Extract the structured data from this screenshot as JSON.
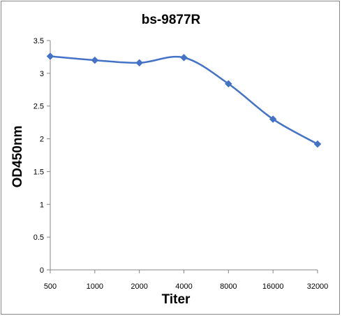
{
  "chart_data": {
    "type": "line",
    "title": "bs-9877R",
    "xlabel": "Titer",
    "ylabel": "OD450nm",
    "categories": [
      "500",
      "1000",
      "2000",
      "4000",
      "8000",
      "16000",
      "32000"
    ],
    "series": [
      {
        "values": [
          3.26,
          3.2,
          3.16,
          3.24,
          2.84,
          2.3,
          1.92
        ],
        "color": "#4472C4",
        "marker": "diamond",
        "smooth": true
      }
    ],
    "ylim": [
      0,
      3.5
    ],
    "yticks": [
      "0",
      "0.5",
      "1",
      "1.5",
      "2",
      "2.5",
      "3",
      "3.5"
    ],
    "grid": false,
    "legend": "none"
  }
}
